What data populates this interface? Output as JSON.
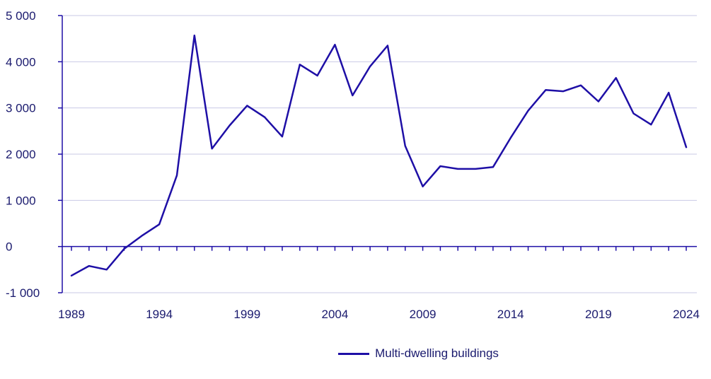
{
  "chart_data": {
    "type": "line",
    "title": "",
    "xlabel": "",
    "ylabel": "",
    "x": [
      1989,
      1990,
      1991,
      1992,
      1993,
      1994,
      1995,
      1996,
      1997,
      1998,
      1999,
      2000,
      2001,
      2002,
      2003,
      2004,
      2005,
      2006,
      2007,
      2008,
      2009,
      2010,
      2011,
      2012,
      2013,
      2014,
      2015,
      2016,
      2017,
      2018,
      2019,
      2020,
      2021,
      2022,
      2023,
      2024
    ],
    "x_tick_labels": [
      "1989",
      "1994",
      "1999",
      "2004",
      "2009",
      "2014",
      "2019",
      "2024"
    ],
    "y_tick_labels": [
      "5 000",
      "4 000",
      "3 000",
      "2 000",
      "1 000",
      "0",
      "-1 000"
    ],
    "y_ticks": [
      5000,
      4000,
      3000,
      2000,
      1000,
      0,
      -1000
    ],
    "ylim": [
      -1000,
      5000
    ],
    "grid": true,
    "legend_position": "bottom-center",
    "series": [
      {
        "name": "Multi-dwelling buildings",
        "color": "#1e0fa6",
        "values": [
          -630,
          -420,
          -500,
          -50,
          230,
          480,
          1540,
          4570,
          2120,
          2620,
          3050,
          2800,
          2380,
          3940,
          3700,
          4370,
          3270,
          3900,
          4350,
          2180,
          1300,
          1740,
          1680,
          1680,
          1720,
          2350,
          2940,
          3390,
          3360,
          3490,
          3140,
          3650,
          2880,
          2640,
          3330,
          2150
        ]
      }
    ]
  },
  "legend": {
    "label": "Multi-dwelling buildings"
  }
}
